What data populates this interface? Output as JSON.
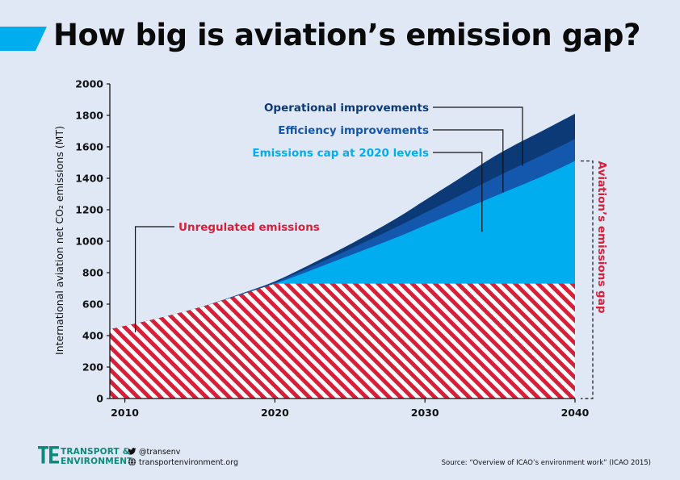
{
  "title": "How big is aviation’s emission gap?",
  "colors": {
    "background": "#e0e8f6",
    "accent": "#00aeef",
    "operational": "#0b3a77",
    "efficiency": "#1458ad",
    "cap": "#00aeef",
    "unregulated": "#d71f3a",
    "gap_label": "#d71f3a",
    "brand": "#0d8a7c"
  },
  "chart_data": {
    "type": "area",
    "ylabel": "International aviation net CO₂ emissions (MT)",
    "xlim": [
      2009,
      2040
    ],
    "ylim": [
      0,
      2000
    ],
    "x_ticks": [
      2010,
      2020,
      2030,
      2040
    ],
    "y_ticks": [
      0,
      200,
      400,
      600,
      800,
      1000,
      1200,
      1400,
      1600,
      1800,
      2000
    ],
    "x": [
      2009,
      2012,
      2015,
      2018,
      2020,
      2022,
      2025,
      2028,
      2030,
      2032,
      2035,
      2038,
      2040
    ],
    "series": [
      {
        "name": "Operational improvements",
        "values": [
          440,
          505,
          580,
          675,
          745,
          835,
          980,
          1140,
          1260,
          1380,
          1560,
          1710,
          1810
        ]
      },
      {
        "name": "Efficiency improvements",
        "values": [
          440,
          505,
          580,
          672,
          738,
          820,
          950,
          1085,
          1180,
          1275,
          1420,
          1555,
          1650
        ]
      },
      {
        "name": "Emissions cap at 2020 levels",
        "values": [
          440,
          505,
          580,
          668,
          730,
          800,
          910,
          1020,
          1100,
          1180,
          1300,
          1420,
          1510
        ]
      },
      {
        "name": "Unregulated emissions",
        "values": [
          440,
          505,
          580,
          668,
          730,
          730,
          730,
          730,
          730,
          730,
          730,
          730,
          730
        ]
      }
    ],
    "annotations": [
      {
        "text": "Operational improvements",
        "x": 2036.5,
        "y": 1480,
        "color": "#0b3a77"
      },
      {
        "text": "Efficiency improvements",
        "x": 2035.2,
        "y": 1310,
        "color": "#1458ad"
      },
      {
        "text": "Emissions cap at 2020 levels",
        "x": 2033.8,
        "y": 1060,
        "color": "#00aeef"
      },
      {
        "text": "Unregulated emissions",
        "x": 2010.7,
        "y": 420,
        "color": "#d71f3a"
      }
    ],
    "gap_label": "Aviation’s emissions gap",
    "gap_range": [
      0,
      1510
    ]
  },
  "footer": {
    "logo_line1": "TRANSPORT &",
    "logo_line2": "ENVIRONMENT",
    "twitter": "@transenv",
    "website": "transportenvironment.org",
    "source": "Source: “Overview of ICAO’s environment work” (ICAO 2015)",
    "logo_icon": "te-logo-icon",
    "twitter_icon": "twitter-icon",
    "web_icon": "globe-icon"
  }
}
